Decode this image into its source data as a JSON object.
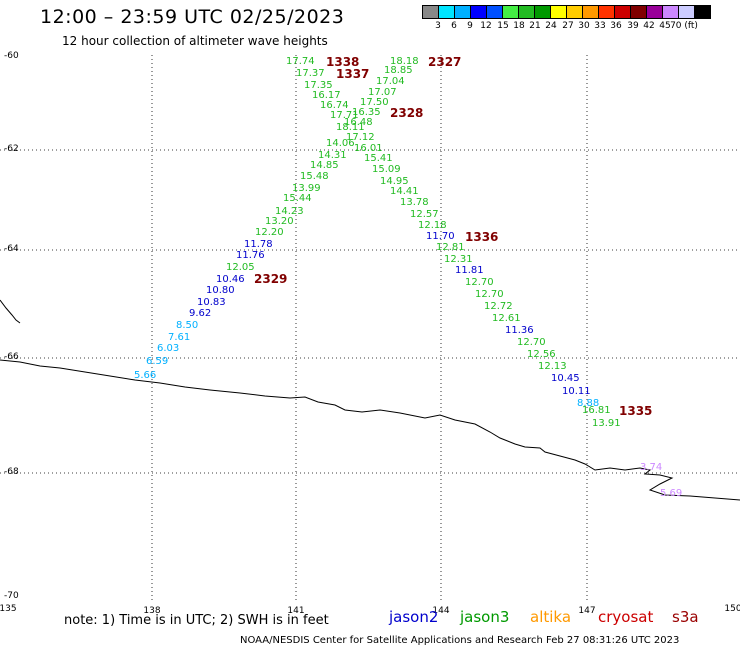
{
  "title": "12:00 – 23:59 UTC 02/25/2023",
  "subtitle": "12 hour collection of altimeter wave heights",
  "color_scale": {
    "colors": [
      "#888888",
      "#00e5ff",
      "#00b0ff",
      "#0000ff",
      "#0050ff",
      "#44ee44",
      "#22bb22",
      "#009900",
      "#ffff00",
      "#ffcc00",
      "#ff9900",
      "#ff3300",
      "#cc0000",
      "#800000",
      "#990099",
      "#cc88ff",
      "#ccccff",
      "#000000"
    ],
    "labels": [
      "3",
      "6",
      "9",
      "12",
      "15",
      "18",
      "21",
      "24",
      "27",
      "30",
      "33",
      "36",
      "39",
      "42",
      "45",
      "70 (ft)"
    ]
  },
  "y_labels": [
    "-60",
    "-62",
    "-64",
    "-66",
    "-68",
    "-70"
  ],
  "x_labels": [
    "135",
    "138",
    "141",
    "144",
    "147",
    "150"
  ],
  "note": "note:  1) Time is in UTC; 2) SWH is in feet",
  "legend": [
    {
      "name": "jason2",
      "color": "#0000cc"
    },
    {
      "name": "jason3",
      "color": "#009900"
    },
    {
      "name": "altika",
      "color": "#ff9900"
    },
    {
      "name": "cryosat",
      "color": "#cc0000"
    },
    {
      "name": "s3a",
      "color": "#990000"
    }
  ],
  "credit": "NOAA/NESDIS Center for Satellite Applications and Research     Feb 27 08:31:26 UTC 2023",
  "pass_labels": [
    "1338",
    "1337",
    "2327",
    "2328",
    "1336",
    "2329",
    "1335"
  ],
  "tracks": [
    {
      "color": "#22bb22",
      "values": [
        "17.74",
        "17.37",
        "17.35",
        "16.17",
        "16.74",
        "17.71",
        "18.11",
        "14.06",
        "14.31",
        "14.85",
        "15.48",
        "13.99",
        "15.44",
        "14.23",
        "13.20",
        "12.20"
      ]
    },
    {
      "color": "#0000cc",
      "values": [
        "11.78",
        "11.76"
      ]
    },
    {
      "color": "#22bb22",
      "values": [
        "12.05"
      ]
    },
    {
      "color": "#0000cc",
      "values": [
        "10.46",
        "10.80",
        "10.83",
        "9.62"
      ]
    },
    {
      "color": "#00b0ff",
      "values": [
        "8.50",
        "7.61",
        "6.03",
        "6.59",
        "5.66"
      ]
    },
    {
      "color": "#22bb22",
      "values": [
        "18.18",
        "18.85",
        "17.04",
        "17.07",
        "17.50",
        "16.35",
        "16.48",
        "17.12",
        "16.01",
        "15.41",
        "15.09",
        "14.95",
        "14.41",
        "13.78",
        "12.57",
        "12.18"
      ]
    },
    {
      "color": "#0000cc",
      "values": [
        "11.70"
      ]
    },
    {
      "color": "#22bb22",
      "values": [
        "12.81",
        "12.31"
      ]
    },
    {
      "color": "#0000cc",
      "values": [
        "11.81"
      ]
    },
    {
      "color": "#22bb22",
      "values": [
        "12.70",
        "12.70",
        "12.72",
        "12.61"
      ]
    },
    {
      "color": "#0000cc",
      "values": [
        "11.36"
      ]
    },
    {
      "color": "#22bb22",
      "values": [
        "12.70",
        "12.56",
        "12.13"
      ]
    },
    {
      "color": "#0000cc",
      "values": [
        "10.45",
        "10.11"
      ]
    },
    {
      "color": "#00b0ff",
      "values": [
        "8.88"
      ]
    },
    {
      "color": "#22bb22",
      "values": [
        "16.81",
        "13.91"
      ]
    },
    {
      "color": "#cc88ff",
      "values": [
        "3.74",
        "5.69"
      ]
    }
  ]
}
